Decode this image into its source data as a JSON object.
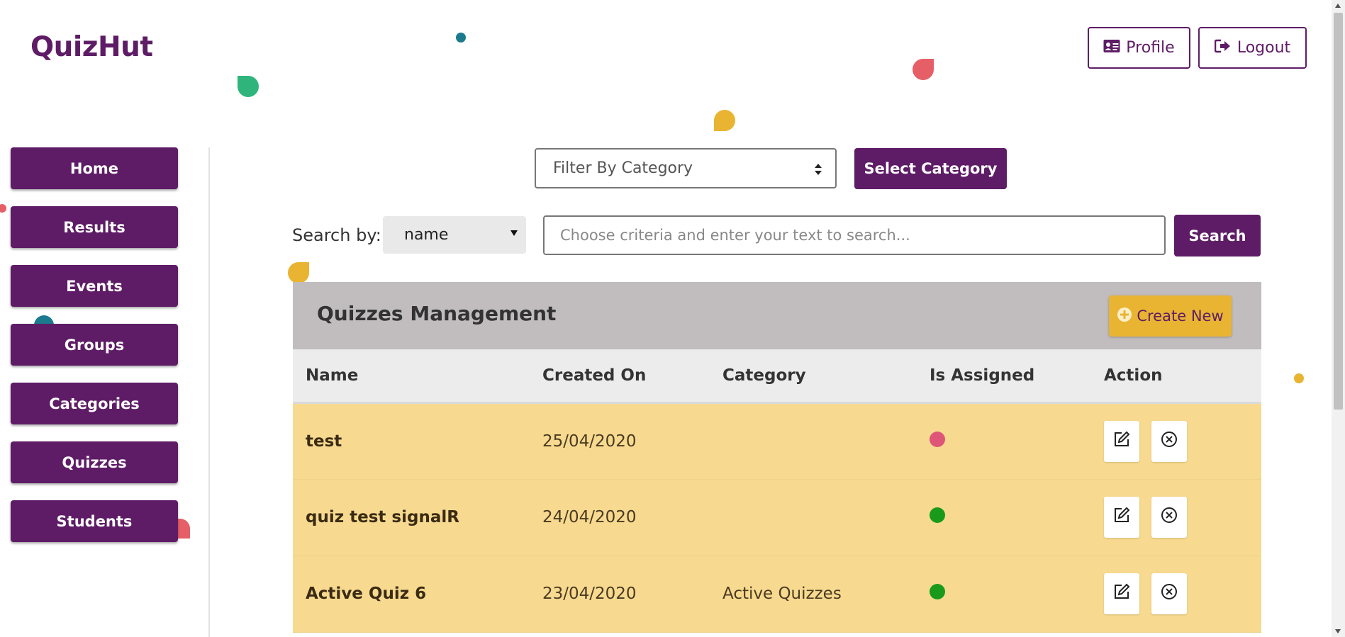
{
  "brand": "QuizHut",
  "header": {
    "profile_label": "Profile",
    "logout_label": "Logout"
  },
  "sidebar": {
    "items": [
      {
        "label": "Home"
      },
      {
        "label": "Results"
      },
      {
        "label": "Events"
      },
      {
        "label": "Groups"
      },
      {
        "label": "Categories"
      },
      {
        "label": "Quizzes"
      },
      {
        "label": "Students"
      }
    ]
  },
  "filter": {
    "placeholder": "Filter By Category",
    "button_label": "Select Category"
  },
  "search": {
    "label": "Search by:",
    "criteria_selected": "name",
    "placeholder": "Choose criteria and enter your text to search...",
    "button_label": "Search"
  },
  "panel": {
    "title": "Quizzes Management",
    "create_label": "Create New",
    "columns": [
      "Name",
      "Created On",
      "Category",
      "Is Assigned",
      "Action"
    ],
    "rows": [
      {
        "name": "test",
        "created_on": "25/04/2020",
        "category": "",
        "is_assigned": false
      },
      {
        "name": "quiz test signalR",
        "created_on": "24/04/2020",
        "category": "",
        "is_assigned": true
      },
      {
        "name": "Active Quiz 6",
        "created_on": "23/04/2020",
        "category": "Active Quizzes",
        "is_assigned": true
      }
    ]
  },
  "colors": {
    "primary": "#5e1c66",
    "accent": "#e8b431",
    "row_bg": "#f7da8f",
    "assigned_true": "#1a9a1a",
    "assigned_false": "#de5578"
  },
  "icons": {
    "profile": "id-card-icon",
    "logout": "sign-out-icon",
    "create": "plus-circle-icon",
    "edit": "edit-icon",
    "delete": "x-circle-icon"
  }
}
